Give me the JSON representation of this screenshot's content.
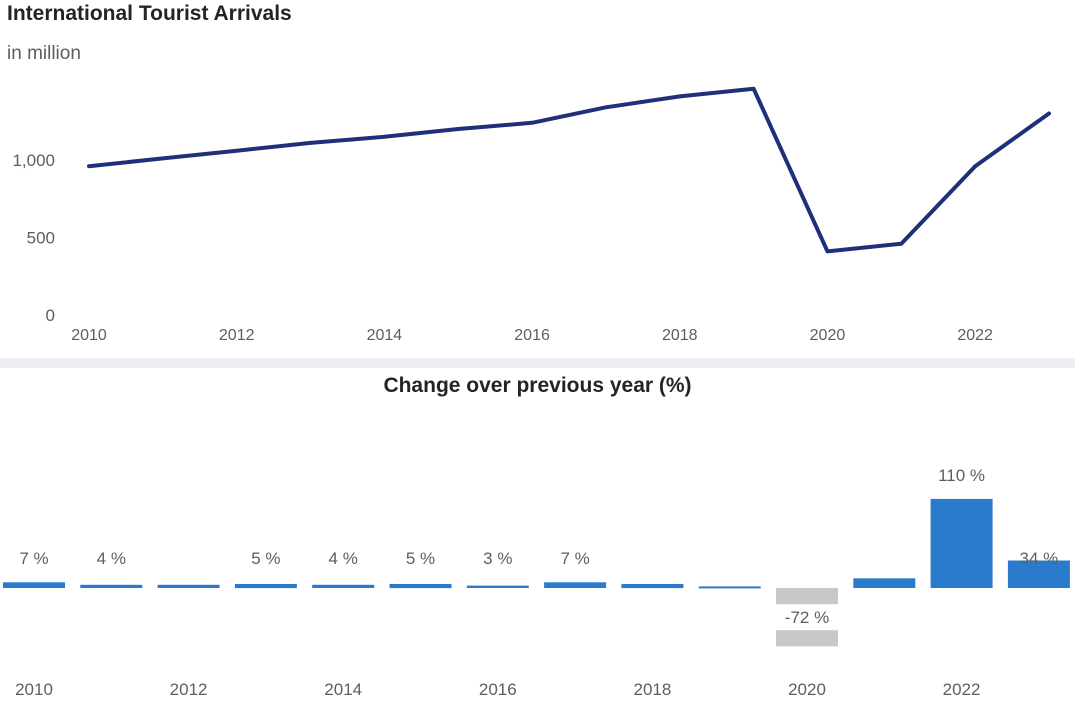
{
  "header": {
    "title": "International Tourist Arrivals",
    "subtitle": "in million",
    "change_title": "Change over previous year (%)"
  },
  "colors": {
    "line": "#1f2f7a",
    "bar_positive": "#2b7bcc",
    "bar_negative": "#c8c8c8",
    "text": "#605e5c"
  },
  "chart_data": [
    {
      "type": "line",
      "x": [
        2010,
        2011,
        2012,
        2013,
        2014,
        2015,
        2016,
        2017,
        2018,
        2019,
        2020,
        2021,
        2022,
        2023
      ],
      "y": [
        960,
        1010,
        1060,
        1110,
        1150,
        1200,
        1240,
        1340,
        1410,
        1460,
        410,
        460,
        960,
        1300
      ],
      "ylim": [
        0,
        1600
      ],
      "yticks": [
        0,
        500,
        1000
      ],
      "ytick_labels": [
        "0",
        "500",
        "1,000"
      ],
      "xticks": [
        2010,
        2012,
        2014,
        2016,
        2018,
        2020,
        2022
      ],
      "xtick_labels": [
        "2010",
        "2012",
        "2014",
        "2016",
        "2018",
        "2020",
        "2022"
      ],
      "grid": false
    },
    {
      "type": "bar",
      "categories": [
        "2010",
        "2011",
        "2012",
        "2013",
        "2014",
        "2015",
        "2016",
        "2017",
        "2018",
        "2019",
        "2020",
        "2021",
        "2022",
        "2023"
      ],
      "values": [
        7,
        4,
        4,
        5,
        4,
        5,
        3,
        7,
        5,
        2,
        -72,
        12,
        110,
        34
      ],
      "data_labels": [
        "7 %",
        "4 %",
        "",
        "5 %",
        "4 %",
        "5 %",
        "3 %",
        "7 %",
        "",
        "",
        "-72 %",
        "",
        "110 %",
        "34 %"
      ],
      "xtick_labels": [
        "2010",
        "",
        "2012",
        "",
        "2014",
        "",
        "2016",
        "",
        "2018",
        "",
        "2020",
        "",
        "2022",
        ""
      ],
      "ylim": [
        -72,
        110
      ]
    }
  ]
}
